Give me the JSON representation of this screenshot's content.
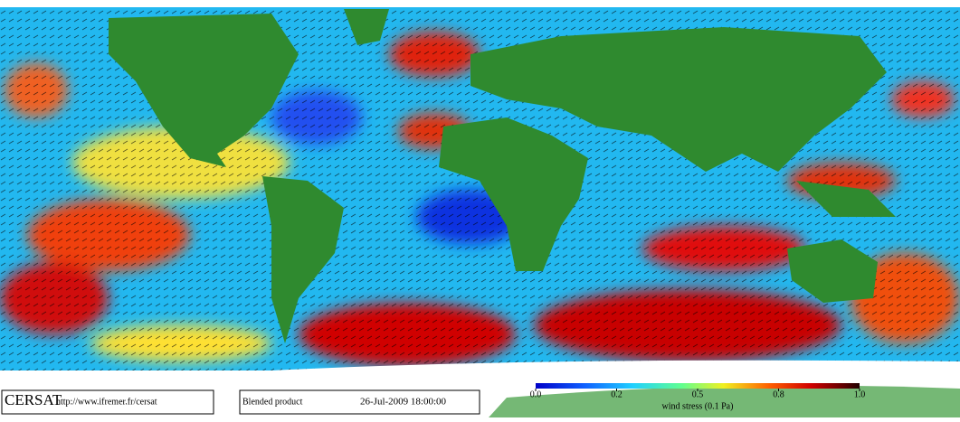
{
  "footer": {
    "logo": "CERSAT",
    "url": "http://www.ifremer.fr/cersat",
    "product": "Blended product",
    "date": "26-Jul-2009 18:00:00"
  },
  "colorbar": {
    "ticks": [
      {
        "value": 0,
        "label": "0.0"
      },
      0.2,
      0.5,
      0.8,
      {
        "value": 1,
        "label": "1.0"
      }
    ],
    "label": "wind stress (0.1 Pa)"
  }
}
